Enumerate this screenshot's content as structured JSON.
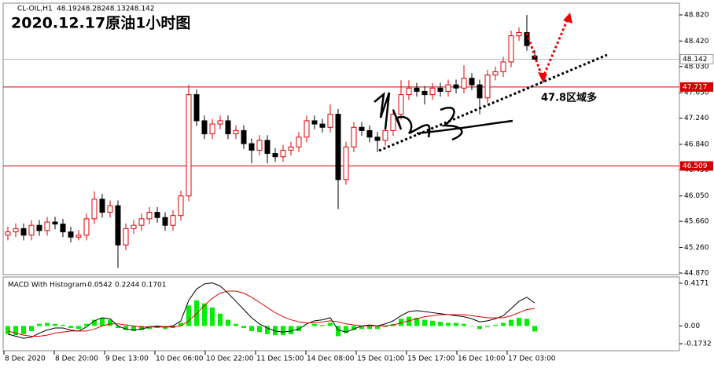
{
  "chart_data": [
    {
      "type": "candlestick",
      "title": "2020.12.17原油1小时图",
      "symbol": "CL-OIL,H1",
      "up_color": "#e00000",
      "down_color": "#000000",
      "candles": [
        [
          45.45,
          45.58,
          45.37,
          45.5
        ],
        [
          45.5,
          45.63,
          45.42,
          45.55
        ],
        [
          45.55,
          45.63,
          45.37,
          45.45
        ],
        [
          45.45,
          45.68,
          45.37,
          45.6
        ],
        [
          45.6,
          45.68,
          45.44,
          45.52
        ],
        [
          45.52,
          45.73,
          45.44,
          45.65
        ],
        [
          45.65,
          45.73,
          45.54,
          45.62
        ],
        [
          45.62,
          45.7,
          45.42,
          45.5
        ],
        [
          45.5,
          45.58,
          45.34,
          45.42
        ],
        [
          45.42,
          45.53,
          45.37,
          45.45
        ],
        [
          45.45,
          45.78,
          45.37,
          45.7
        ],
        [
          45.7,
          46.12,
          45.62,
          46.0
        ],
        [
          46.0,
          46.08,
          45.72,
          45.8
        ],
        [
          45.8,
          45.98,
          45.72,
          45.9
        ],
        [
          45.9,
          45.98,
          44.95,
          45.3
        ],
        [
          45.3,
          45.63,
          45.22,
          45.55
        ],
        [
          45.55,
          45.68,
          45.47,
          45.6
        ],
        [
          45.6,
          45.78,
          45.52,
          45.7
        ],
        [
          45.7,
          45.88,
          45.62,
          45.8
        ],
        [
          45.8,
          45.88,
          45.64,
          45.72
        ],
        [
          45.72,
          45.8,
          45.52,
          45.6
        ],
        [
          45.6,
          45.83,
          45.52,
          45.75
        ],
        [
          45.75,
          46.13,
          45.67,
          46.05
        ],
        [
          46.05,
          47.75,
          45.97,
          47.6
        ],
        [
          47.6,
          47.68,
          47.12,
          47.2
        ],
        [
          47.2,
          47.28,
          46.92,
          47.0
        ],
        [
          47.0,
          47.23,
          46.92,
          47.15
        ],
        [
          47.15,
          47.28,
          47.07,
          47.2
        ],
        [
          47.2,
          47.28,
          46.92,
          47.0
        ],
        [
          47.0,
          47.13,
          46.92,
          47.05
        ],
        [
          47.05,
          47.13,
          46.77,
          46.85
        ],
        [
          46.85,
          46.93,
          46.55,
          46.75
        ],
        [
          46.75,
          46.98,
          46.67,
          46.9
        ],
        [
          46.9,
          46.98,
          46.55,
          46.7
        ],
        [
          46.7,
          46.78,
          46.57,
          46.65
        ],
        [
          46.65,
          46.83,
          46.57,
          46.75
        ],
        [
          46.75,
          46.88,
          46.67,
          46.8
        ],
        [
          46.8,
          47.03,
          46.72,
          46.95
        ],
        [
          46.95,
          47.28,
          46.87,
          47.2
        ],
        [
          47.2,
          47.28,
          47.07,
          47.15
        ],
        [
          47.15,
          47.23,
          47.02,
          47.1
        ],
        [
          47.1,
          47.45,
          47.02,
          47.3
        ],
        [
          47.3,
          47.38,
          45.85,
          46.3
        ],
        [
          46.3,
          46.88,
          46.22,
          46.8
        ],
        [
          46.8,
          47.18,
          46.72,
          47.1
        ],
        [
          47.1,
          47.18,
          46.97,
          47.05
        ],
        [
          47.05,
          47.13,
          46.87,
          46.95
        ],
        [
          46.95,
          47.03,
          46.72,
          46.9
        ],
        [
          46.9,
          47.13,
          46.82,
          47.05
        ],
        [
          47.05,
          47.38,
          46.97,
          47.3
        ],
        [
          47.3,
          47.82,
          47.22,
          47.6
        ],
        [
          47.6,
          47.82,
          47.52,
          47.7
        ],
        [
          47.7,
          47.78,
          47.57,
          47.65
        ],
        [
          47.65,
          47.73,
          47.45,
          47.6
        ],
        [
          47.6,
          47.78,
          47.52,
          47.7
        ],
        [
          47.7,
          47.78,
          47.57,
          47.65
        ],
        [
          47.65,
          47.83,
          47.57,
          47.75
        ],
        [
          47.75,
          47.83,
          47.62,
          47.7
        ],
        [
          47.7,
          48.05,
          47.62,
          47.85
        ],
        [
          47.85,
          47.93,
          47.67,
          47.75
        ],
        [
          47.75,
          47.83,
          47.3,
          47.55
        ],
        [
          47.55,
          47.98,
          47.47,
          47.9
        ],
        [
          47.9,
          48.03,
          47.82,
          47.95
        ],
        [
          47.95,
          48.18,
          47.87,
          48.1
        ],
        [
          48.1,
          48.58,
          48.02,
          48.5
        ],
        [
          48.5,
          48.63,
          48.42,
          48.55
        ],
        [
          48.55,
          48.82,
          48.27,
          48.35
        ],
        [
          48.192,
          48.282,
          48.132,
          48.142
        ]
      ],
      "xlim": [
        -0.6,
        85.4
      ],
      "xticks": [
        {
          "value": -0.5,
          "label": "8 Dec 2020"
        },
        {
          "value": 5.9,
          "label": "8 Dec 20:00"
        },
        {
          "value": 12.3,
          "label": "9 Dec 13:00"
        },
        {
          "value": 18.7,
          "label": "10 Dec 06:00"
        },
        {
          "value": 25.1,
          "label": "10 Dec 22:00"
        },
        {
          "value": 31.5,
          "label": "11 Dec 15:00"
        },
        {
          "value": 37.9,
          "label": "14 Dec 08:00"
        },
        {
          "value": 44.3,
          "label": "15 Dec 01:00"
        },
        {
          "value": 50.7,
          "label": "15 Dec 17:00"
        },
        {
          "value": 57.1,
          "label": "16 Dec 10:00"
        },
        {
          "value": 63.5,
          "label": "17 Dec 03:00"
        }
      ],
      "ylim": [
        44.846,
        49.0
      ],
      "yticks": [
        {
          "value": 48.82,
          "label": "48.820"
        },
        {
          "value": 48.42,
          "label": "48.420"
        },
        {
          "value": 48.03,
          "label": "48.030"
        },
        {
          "value": 47.63,
          "label": "47.630"
        },
        {
          "value": 47.24,
          "label": "47.240"
        },
        {
          "value": 46.84,
          "label": "46.840"
        },
        {
          "value": 46.45,
          "label": "46.450"
        },
        {
          "value": 46.05,
          "label": "46.050"
        },
        {
          "value": 45.66,
          "label": "45.660"
        },
        {
          "value": 45.26,
          "label": "45.260"
        },
        {
          "value": 44.87,
          "label": "44.870"
        }
      ],
      "levels": [
        {
          "value": 47.717,
          "color": "#d40000"
        },
        {
          "value": 46.509,
          "color": "#d40000"
        }
      ],
      "annotation": "47.8区域多"
    },
    {
      "type": "macd",
      "title": "MACD With Histogram",
      "histogram_color": "#00ee00",
      "macd_color": "#000000",
      "signal_color": "#e00000",
      "histogram": [
        -0.08,
        -0.09,
        -0.08,
        -0.05,
        0.02,
        0.03,
        0.02,
        0.01,
        -0.02,
        -0.03,
        0.02,
        0.06,
        0.08,
        0.06,
        -0.02,
        -0.04,
        -0.05,
        -0.04,
        -0.03,
        -0.02,
        -0.03,
        -0.02,
        0.03,
        0.2,
        0.25,
        0.22,
        0.18,
        0.12,
        0.06,
        0.02,
        -0.02,
        -0.05,
        -0.06,
        -0.08,
        -0.09,
        -0.09,
        -0.08,
        -0.05,
        0.0,
        0.02,
        0.01,
        0.03,
        -0.1,
        -0.07,
        -0.04,
        -0.03,
        -0.03,
        -0.03,
        -0.01,
        0.02,
        0.07,
        0.09,
        0.08,
        0.06,
        0.05,
        0.04,
        0.03,
        0.03,
        0.02,
        0.0,
        -0.03,
        -0.01,
        0.01,
        0.03,
        0.06,
        0.08,
        0.07,
        -0.0542
      ],
      "macd": [
        -0.08,
        -0.1,
        -0.12,
        -0.11,
        -0.07,
        -0.04,
        -0.02,
        -0.02,
        -0.04,
        -0.05,
        -0.01,
        0.05,
        0.08,
        0.07,
        0.0,
        -0.03,
        -0.04,
        -0.03,
        -0.01,
        0.0,
        -0.01,
        0.0,
        0.05,
        0.25,
        0.36,
        0.41,
        0.42,
        0.39,
        0.32,
        0.24,
        0.16,
        0.08,
        0.02,
        -0.02,
        -0.05,
        -0.06,
        -0.05,
        -0.03,
        0.02,
        0.05,
        0.06,
        0.08,
        -0.04,
        -0.06,
        -0.03,
        0.0,
        0.01,
        0.0,
        0.02,
        0.05,
        0.1,
        0.14,
        0.15,
        0.14,
        0.13,
        0.12,
        0.11,
        0.1,
        0.09,
        0.07,
        0.04,
        0.05,
        0.07,
        0.1,
        0.17,
        0.24,
        0.28,
        0.2244
      ],
      "signal": [
        -0.05,
        -0.07,
        -0.09,
        -0.1,
        -0.1,
        -0.09,
        -0.07,
        -0.06,
        -0.05,
        -0.05,
        -0.05,
        -0.03,
        0.0,
        0.02,
        0.02,
        0.01,
        0.0,
        -0.01,
        -0.01,
        -0.01,
        -0.01,
        -0.01,
        0.0,
        0.05,
        0.12,
        0.2,
        0.27,
        0.32,
        0.34,
        0.34,
        0.32,
        0.28,
        0.23,
        0.18,
        0.13,
        0.09,
        0.06,
        0.04,
        0.03,
        0.03,
        0.04,
        0.05,
        0.04,
        0.02,
        0.01,
        0.0,
        0.0,
        0.0,
        0.0,
        0.01,
        0.03,
        0.05,
        0.07,
        0.09,
        0.1,
        0.11,
        0.11,
        0.11,
        0.11,
        0.1,
        0.09,
        0.08,
        0.08,
        0.08,
        0.1,
        0.13,
        0.16,
        0.1701
      ],
      "ylim": [
        -0.242,
        0.478
      ],
      "yticks": [
        0.4171,
        {
          "value": 0,
          "label": "0.00"
        },
        -0.1732
      ]
    }
  ]
}
